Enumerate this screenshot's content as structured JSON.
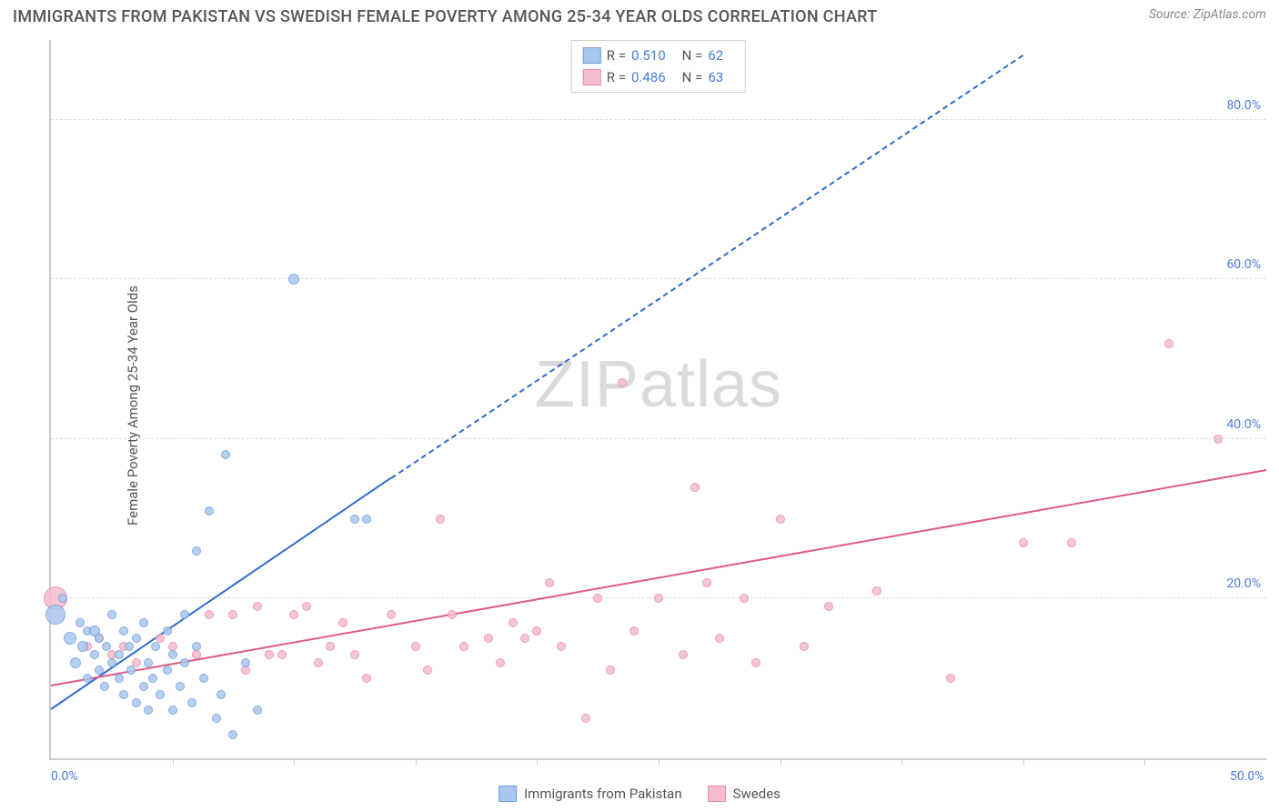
{
  "title": "IMMIGRANTS FROM PAKISTAN VS SWEDISH FEMALE POVERTY AMONG 25-34 YEAR OLDS CORRELATION CHART",
  "source": "Source: ZipAtlas.com",
  "y_axis_label": "Female Poverty Among 25-34 Year Olds",
  "watermark_a": "ZIP",
  "watermark_b": "atlas",
  "chart": {
    "type": "scatter",
    "xlim": [
      0,
      50
    ],
    "ylim": [
      0,
      90
    ],
    "x_ticks_major": [
      0,
      50
    ],
    "x_ticks_minor": [
      5,
      10,
      15,
      20,
      25,
      30,
      35,
      40,
      45
    ],
    "x_tick_labels": {
      "0": "0.0%",
      "50": "50.0%"
    },
    "y_ticks": [
      20,
      40,
      60,
      80
    ],
    "y_tick_labels": {
      "20": "20.0%",
      "40": "40.0%",
      "60": "60.0%",
      "80": "80.0%"
    },
    "grid_color": "#dddddd",
    "background_color": "#ffffff",
    "series": [
      {
        "name": "Immigrants from Pakistan",
        "color_fill": "#a9c7ee",
        "color_stroke": "#6f9edb",
        "r_label": "R =",
        "r_value": "0.510",
        "n_label": "N =",
        "n_value": "62",
        "trend": {
          "x1": 0,
          "y1": 6,
          "x2": 14,
          "y2": 35,
          "dash_to_x": 40,
          "dash_to_y": 88,
          "color": "#2f6bd0"
        },
        "points": [
          {
            "x": 0.2,
            "y": 18,
            "r": 22
          },
          {
            "x": 0.5,
            "y": 20,
            "r": 10
          },
          {
            "x": 0.8,
            "y": 15,
            "r": 14
          },
          {
            "x": 1.0,
            "y": 12,
            "r": 12
          },
          {
            "x": 1.2,
            "y": 17,
            "r": 10
          },
          {
            "x": 1.3,
            "y": 14,
            "r": 12
          },
          {
            "x": 1.5,
            "y": 16,
            "r": 10
          },
          {
            "x": 1.5,
            "y": 10,
            "r": 10
          },
          {
            "x": 1.8,
            "y": 13,
            "r": 10
          },
          {
            "x": 1.8,
            "y": 16,
            "r": 12
          },
          {
            "x": 2.0,
            "y": 11,
            "r": 10
          },
          {
            "x": 2.0,
            "y": 15,
            "r": 10
          },
          {
            "x": 2.2,
            "y": 9,
            "r": 10
          },
          {
            "x": 2.3,
            "y": 14,
            "r": 10
          },
          {
            "x": 2.5,
            "y": 12,
            "r": 10
          },
          {
            "x": 2.5,
            "y": 18,
            "r": 10
          },
          {
            "x": 2.8,
            "y": 13,
            "r": 10
          },
          {
            "x": 2.8,
            "y": 10,
            "r": 10
          },
          {
            "x": 3.0,
            "y": 16,
            "r": 10
          },
          {
            "x": 3.0,
            "y": 8,
            "r": 10
          },
          {
            "x": 3.2,
            "y": 14,
            "r": 10
          },
          {
            "x": 3.3,
            "y": 11,
            "r": 10
          },
          {
            "x": 3.5,
            "y": 7,
            "r": 10
          },
          {
            "x": 3.5,
            "y": 15,
            "r": 10
          },
          {
            "x": 3.8,
            "y": 9,
            "r": 10
          },
          {
            "x": 3.8,
            "y": 17,
            "r": 10
          },
          {
            "x": 4.0,
            "y": 12,
            "r": 10
          },
          {
            "x": 4.0,
            "y": 6,
            "r": 10
          },
          {
            "x": 4.2,
            "y": 10,
            "r": 10
          },
          {
            "x": 4.3,
            "y": 14,
            "r": 10
          },
          {
            "x": 4.5,
            "y": 8,
            "r": 10
          },
          {
            "x": 4.8,
            "y": 16,
            "r": 10
          },
          {
            "x": 4.8,
            "y": 11,
            "r": 10
          },
          {
            "x": 5.0,
            "y": 6,
            "r": 10
          },
          {
            "x": 5.0,
            "y": 13,
            "r": 10
          },
          {
            "x": 5.3,
            "y": 9,
            "r": 10
          },
          {
            "x": 5.5,
            "y": 18,
            "r": 10
          },
          {
            "x": 5.5,
            "y": 12,
            "r": 10
          },
          {
            "x": 5.8,
            "y": 7,
            "r": 10
          },
          {
            "x": 6.0,
            "y": 14,
            "r": 10
          },
          {
            "x": 6.0,
            "y": 26,
            "r": 10
          },
          {
            "x": 6.3,
            "y": 10,
            "r": 10
          },
          {
            "x": 6.5,
            "y": 31,
            "r": 10
          },
          {
            "x": 6.8,
            "y": 5,
            "r": 10
          },
          {
            "x": 7.0,
            "y": 8,
            "r": 10
          },
          {
            "x": 7.2,
            "y": 38,
            "r": 10
          },
          {
            "x": 7.5,
            "y": 3,
            "r": 10
          },
          {
            "x": 8.0,
            "y": 12,
            "r": 10
          },
          {
            "x": 8.5,
            "y": 6,
            "r": 10
          },
          {
            "x": 10.0,
            "y": 60,
            "r": 12
          },
          {
            "x": 12.5,
            "y": 30,
            "r": 10
          },
          {
            "x": 13.0,
            "y": 30,
            "r": 10
          }
        ]
      },
      {
        "name": "Swedes",
        "color_fill": "#f5bccd",
        "color_stroke": "#e88ba8",
        "r_label": "R =",
        "r_value": "0.486",
        "n_label": "N =",
        "n_value": "63",
        "trend": {
          "x1": 0,
          "y1": 9,
          "x2": 50,
          "y2": 36,
          "color": "#e05a87"
        },
        "points": [
          {
            "x": 0.2,
            "y": 20,
            "r": 26
          },
          {
            "x": 1.5,
            "y": 14,
            "r": 10
          },
          {
            "x": 2.0,
            "y": 15,
            "r": 10
          },
          {
            "x": 2.5,
            "y": 13,
            "r": 10
          },
          {
            "x": 3.0,
            "y": 14,
            "r": 10
          },
          {
            "x": 3.5,
            "y": 12,
            "r": 10
          },
          {
            "x": 4.5,
            "y": 15,
            "r": 10
          },
          {
            "x": 5.0,
            "y": 14,
            "r": 10
          },
          {
            "x": 6.0,
            "y": 13,
            "r": 10
          },
          {
            "x": 6.5,
            "y": 18,
            "r": 10
          },
          {
            "x": 7.5,
            "y": 18,
            "r": 10
          },
          {
            "x": 8.0,
            "y": 11,
            "r": 10
          },
          {
            "x": 8.5,
            "y": 19,
            "r": 10
          },
          {
            "x": 9.0,
            "y": 13,
            "r": 10
          },
          {
            "x": 9.5,
            "y": 13,
            "r": 10
          },
          {
            "x": 10.0,
            "y": 18,
            "r": 10
          },
          {
            "x": 10.5,
            "y": 19,
            "r": 10
          },
          {
            "x": 11.0,
            "y": 12,
            "r": 10
          },
          {
            "x": 11.5,
            "y": 14,
            "r": 10
          },
          {
            "x": 12.0,
            "y": 17,
            "r": 10
          },
          {
            "x": 12.5,
            "y": 13,
            "r": 10
          },
          {
            "x": 13.0,
            "y": 10,
            "r": 10
          },
          {
            "x": 14.0,
            "y": 18,
            "r": 10
          },
          {
            "x": 15.0,
            "y": 14,
            "r": 10
          },
          {
            "x": 15.5,
            "y": 11,
            "r": 10
          },
          {
            "x": 16.0,
            "y": 30,
            "r": 10
          },
          {
            "x": 16.5,
            "y": 18,
            "r": 10
          },
          {
            "x": 17.0,
            "y": 14,
            "r": 10
          },
          {
            "x": 18.0,
            "y": 15,
            "r": 10
          },
          {
            "x": 18.5,
            "y": 12,
            "r": 10
          },
          {
            "x": 19.0,
            "y": 17,
            "r": 10
          },
          {
            "x": 19.5,
            "y": 15,
            "r": 10
          },
          {
            "x": 20.0,
            "y": 16,
            "r": 10
          },
          {
            "x": 20.5,
            "y": 22,
            "r": 10
          },
          {
            "x": 21.0,
            "y": 14,
            "r": 10
          },
          {
            "x": 22.0,
            "y": 5,
            "r": 10
          },
          {
            "x": 22.5,
            "y": 20,
            "r": 10
          },
          {
            "x": 23.0,
            "y": 11,
            "r": 10
          },
          {
            "x": 23.5,
            "y": 47,
            "r": 10
          },
          {
            "x": 24.0,
            "y": 16,
            "r": 10
          },
          {
            "x": 25.0,
            "y": 20,
            "r": 10
          },
          {
            "x": 26.0,
            "y": 13,
            "r": 10
          },
          {
            "x": 26.5,
            "y": 34,
            "r": 10
          },
          {
            "x": 27.0,
            "y": 22,
            "r": 10
          },
          {
            "x": 27.5,
            "y": 15,
            "r": 10
          },
          {
            "x": 28.5,
            "y": 20,
            "r": 10
          },
          {
            "x": 29.0,
            "y": 12,
            "r": 10
          },
          {
            "x": 30.0,
            "y": 30,
            "r": 10
          },
          {
            "x": 31.0,
            "y": 14,
            "r": 10
          },
          {
            "x": 32.0,
            "y": 19,
            "r": 10
          },
          {
            "x": 34.0,
            "y": 21,
            "r": 10
          },
          {
            "x": 37.0,
            "y": 10,
            "r": 10
          },
          {
            "x": 40.0,
            "y": 27,
            "r": 10
          },
          {
            "x": 42.0,
            "y": 27,
            "r": 10
          },
          {
            "x": 46.0,
            "y": 52,
            "r": 10
          },
          {
            "x": 48.0,
            "y": 40,
            "r": 10
          }
        ]
      }
    ]
  },
  "bottom_legend": {
    "series1": "Immigrants from Pakistan",
    "series2": "Swedes"
  }
}
